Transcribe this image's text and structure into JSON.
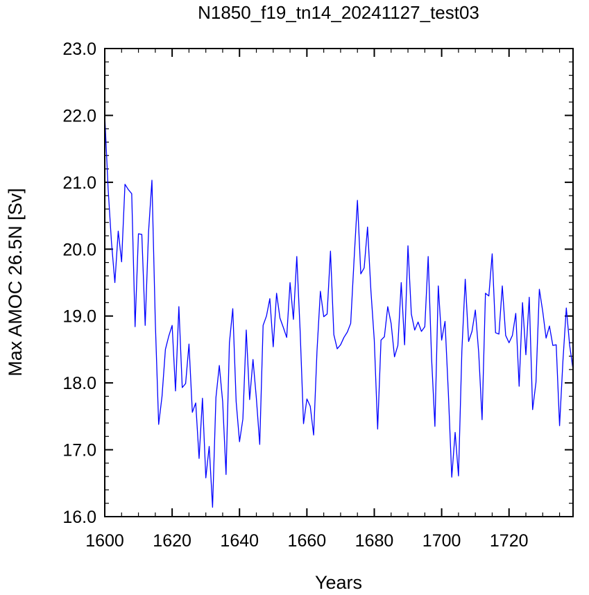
{
  "chart_data": {
    "type": "line",
    "title": "N1850_f19_tn14_20241127_test03",
    "xlabel": "Years",
    "ylabel": "Max AMOC 26.5N [Sv]",
    "xlim": [
      1600,
      1739
    ],
    "ylim": [
      16.0,
      23.0
    ],
    "x_ticks": [
      1600,
      1620,
      1640,
      1660,
      1680,
      1700,
      1720
    ],
    "x_tick_labels": [
      "1600",
      "1620",
      "1640",
      "1660",
      "1680",
      "1700",
      "1720"
    ],
    "y_ticks": [
      16.0,
      17.0,
      18.0,
      19.0,
      20.0,
      21.0,
      22.0,
      23.0
    ],
    "y_tick_labels": [
      "16.0",
      "17.0",
      "18.0",
      "19.0",
      "20.0",
      "21.0",
      "22.0",
      "23.0"
    ],
    "grid": false,
    "line_color": "#0000ff",
    "series": [
      {
        "x": [
          1600,
          1601,
          1602,
          1603,
          1604,
          1605,
          1606,
          1607,
          1608,
          1609,
          1610,
          1611,
          1612,
          1613,
          1614,
          1615,
          1616,
          1617,
          1618,
          1619,
          1620,
          1621,
          1622,
          1623,
          1624,
          1625,
          1626,
          1627,
          1628,
          1629,
          1630,
          1631,
          1632,
          1633,
          1634,
          1635,
          1636,
          1637,
          1638,
          1639,
          1640,
          1641,
          1642,
          1643,
          1644,
          1645,
          1646,
          1647,
          1648,
          1649,
          1650,
          1651,
          1652,
          1653,
          1654,
          1655,
          1656,
          1657,
          1658,
          1659,
          1660,
          1661,
          1662,
          1663,
          1664,
          1665,
          1666,
          1667,
          1668,
          1669,
          1670,
          1671,
          1672,
          1673,
          1674,
          1675,
          1676,
          1677,
          1678,
          1679,
          1680,
          1681,
          1682,
          1683,
          1684,
          1685,
          1686,
          1687,
          1688,
          1689,
          1690,
          1691,
          1692,
          1693,
          1694,
          1695,
          1696,
          1697,
          1698,
          1699,
          1700,
          1701,
          1702,
          1703,
          1704,
          1705,
          1706,
          1707,
          1708,
          1709,
          1710,
          1711,
          1712,
          1713,
          1714,
          1715,
          1716,
          1717,
          1718,
          1719,
          1720,
          1721,
          1722,
          1723,
          1724,
          1725,
          1726,
          1727,
          1728,
          1729,
          1730,
          1731,
          1732,
          1733,
          1734,
          1735,
          1736,
          1737,
          1738,
          1739
        ],
        "values": [
          22.0,
          20.9,
          20.1,
          19.5,
          20.27,
          19.81,
          20.97,
          20.89,
          20.83,
          18.84,
          20.23,
          20.22,
          18.86,
          20.26,
          21.03,
          18.92,
          17.38,
          17.8,
          18.5,
          18.7,
          18.86,
          17.88,
          19.14,
          17.93,
          17.99,
          18.58,
          17.56,
          17.7,
          16.87,
          17.77,
          16.58,
          17.05,
          16.14,
          17.78,
          18.26,
          17.72,
          16.63,
          18.6,
          19.11,
          17.72,
          17.12,
          17.46,
          18.79,
          17.75,
          18.35,
          17.77,
          17.08,
          18.86,
          19.0,
          19.26,
          18.54,
          19.34,
          18.97,
          18.83,
          18.68,
          19.5,
          18.95,
          19.89,
          18.77,
          17.39,
          17.76,
          17.65,
          17.22,
          18.48,
          19.37,
          18.99,
          19.03,
          19.97,
          18.72,
          18.51,
          18.57,
          18.68,
          18.76,
          18.89,
          19.84,
          20.73,
          19.63,
          19.72,
          20.33,
          19.38,
          18.64,
          17.31,
          18.64,
          18.69,
          19.14,
          18.89,
          18.39,
          18.56,
          19.5,
          18.57,
          20.05,
          19.03,
          18.79,
          18.91,
          18.77,
          18.84,
          19.89,
          18.38,
          17.35,
          19.45,
          18.64,
          18.92,
          17.84,
          16.59,
          17.26,
          16.61,
          18.48,
          19.55,
          18.62,
          18.77,
          19.09,
          18.45,
          17.45,
          19.34,
          19.3,
          19.93,
          18.75,
          18.73,
          19.45,
          18.71,
          18.6,
          18.71,
          19.04,
          17.95,
          19.2,
          18.42,
          19.28,
          17.6,
          18.01,
          19.4,
          19.07,
          18.67,
          18.85,
          18.56,
          18.57,
          17.36,
          18.33,
          19.12,
          18.56,
          18.2
        ]
      }
    ]
  }
}
